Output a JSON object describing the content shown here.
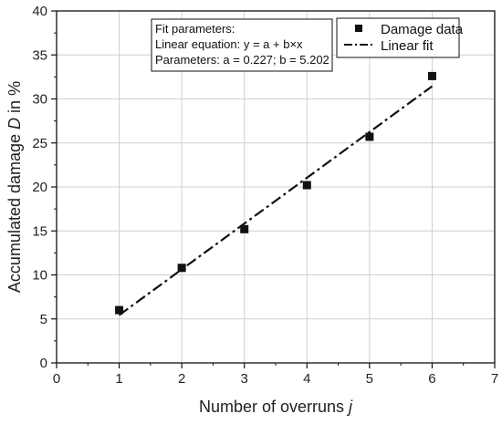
{
  "chart_data": {
    "type": "scatter",
    "xlabel": "Number of overruns",
    "xlabel_var": "j",
    "ylabel": "Accumulated damage",
    "ylabel_var": "D",
    "ylabel_unit": "in %",
    "xlim": [
      0,
      7
    ],
    "ylim": [
      0,
      40
    ],
    "x_ticks": [
      0,
      1,
      2,
      3,
      4,
      5,
      6,
      7
    ],
    "y_ticks": [
      0,
      5,
      10,
      15,
      20,
      25,
      30,
      35,
      40
    ],
    "grid": true,
    "series": [
      {
        "name": "Damage data",
        "kind": "scatter",
        "marker": "square",
        "color": "#111111",
        "x": [
          1,
          2,
          3,
          4,
          5,
          6
        ],
        "y": [
          6.0,
          10.8,
          15.2,
          20.2,
          25.7,
          32.6
        ]
      },
      {
        "name": "Linear fit",
        "kind": "line",
        "style": "dash-dot",
        "color": "#111111",
        "x": [
          1,
          6
        ],
        "y": [
          5.429,
          31.439
        ]
      }
    ],
    "legend": {
      "position": "top-right"
    },
    "fit_box": {
      "lines": [
        "Fit parameters:",
        "Linear equation: y = a + b×x",
        "Parameters: a = 0.227; b = 5.202"
      ]
    }
  }
}
